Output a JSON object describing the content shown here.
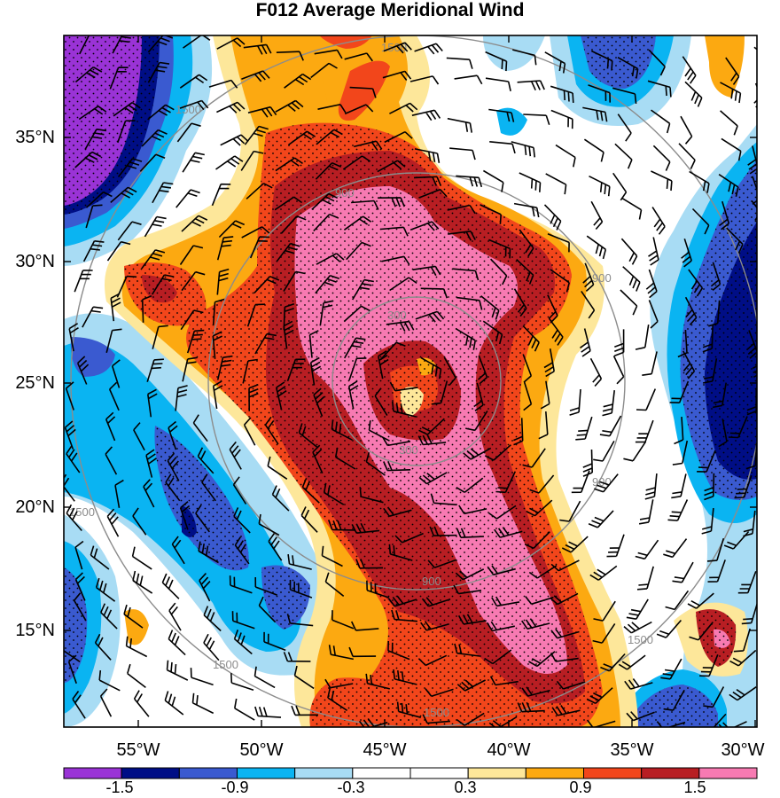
{
  "title": "F012 Average Meridional Wind",
  "map": {
    "latitude_labels": [
      "35°N",
      "30°N",
      "25°N",
      "20°N",
      "15°N"
    ],
    "longitude_labels": [
      "55°W",
      "50°W",
      "45°W",
      "40°W",
      "35°W",
      "30°W"
    ],
    "range_ring_labels": [
      "300",
      "900",
      "1500"
    ],
    "stippling": "dots over significant regions"
  },
  "colorbar": {
    "tick_labels": [
      "-1.5",
      "-0.9",
      "-0.3",
      "0.3",
      "0.9",
      "1.5"
    ],
    "colors": [
      "#9a33d6",
      "#000e86",
      "#3a5ad0",
      "#0ab4f2",
      "#a8dcf4",
      "#ffffff",
      "#ffffff",
      "#fde79a",
      "#fca911",
      "#f2461b",
      "#b81e23",
      "#f77ab2"
    ]
  }
}
